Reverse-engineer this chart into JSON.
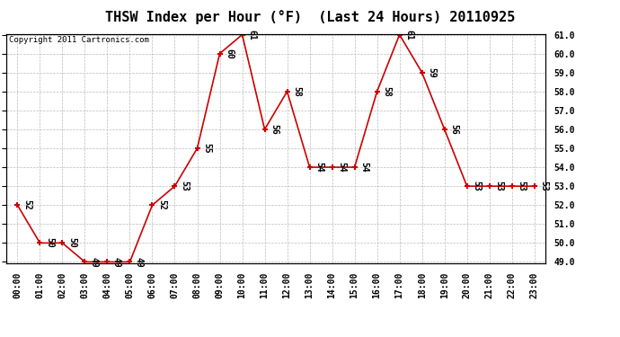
{
  "title": "THSW Index per Hour (°F)  (Last 24 Hours) 20110925",
  "copyright": "Copyright 2011 Cartronics.com",
  "hours": [
    "00:00",
    "01:00",
    "02:00",
    "03:00",
    "04:00",
    "05:00",
    "06:00",
    "07:00",
    "08:00",
    "09:00",
    "10:00",
    "11:00",
    "12:00",
    "13:00",
    "14:00",
    "15:00",
    "16:00",
    "17:00",
    "18:00",
    "19:00",
    "20:00",
    "21:00",
    "22:00",
    "23:00"
  ],
  "values": [
    52,
    50,
    50,
    49,
    49,
    49,
    52,
    53,
    55,
    60,
    61,
    56,
    58,
    54,
    54,
    54,
    58,
    61,
    59,
    56,
    53,
    53,
    53,
    53
  ],
  "ylim_min": 49.0,
  "ylim_max": 61.0,
  "yticks": [
    49.0,
    50.0,
    51.0,
    52.0,
    53.0,
    54.0,
    55.0,
    56.0,
    57.0,
    58.0,
    59.0,
    60.0,
    61.0
  ],
  "line_color": "#cc0000",
  "marker_color": "#cc0000",
  "bg_color": "#ffffff",
  "grid_color": "#bbbbbb",
  "title_fontsize": 11,
  "tick_fontsize": 7,
  "annot_fontsize": 7,
  "copyright_fontsize": 6.5
}
